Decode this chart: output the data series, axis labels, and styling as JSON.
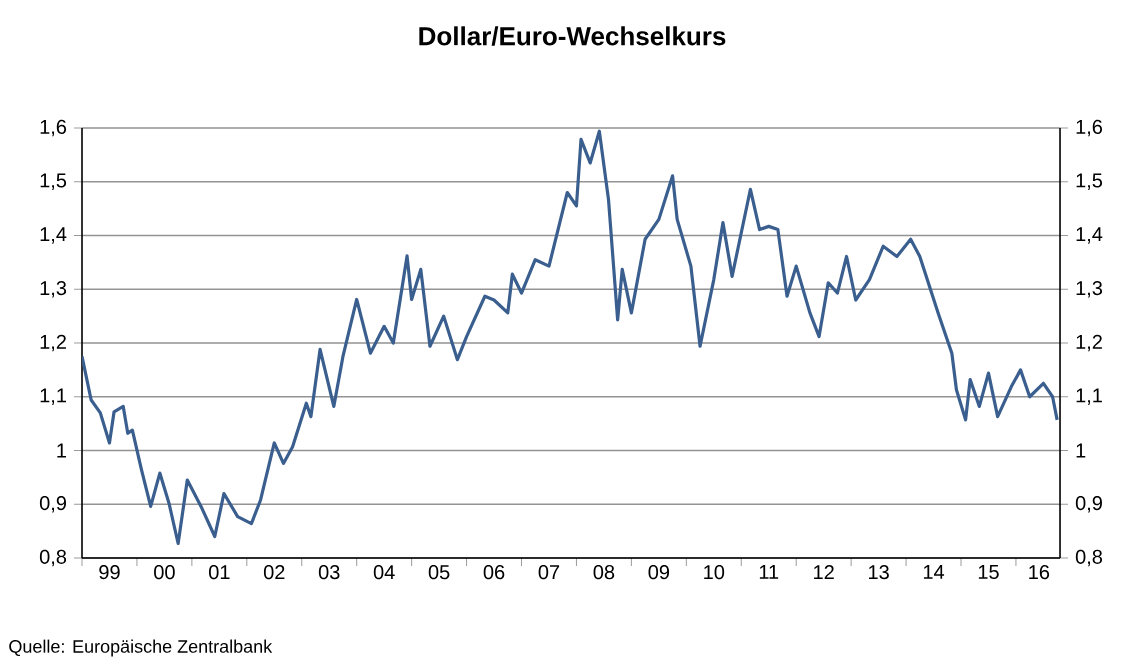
{
  "chart_data": {
    "type": "line",
    "title": "**Dollar/Euro-Wechselkurs**",
    "annotations": [
      "Quelle: Europäische Zentralbank"
    ],
    "x": [
      "1999-01",
      "1999-03",
      "1999-05",
      "1999-07",
      "1999-08",
      "1999-10",
      "1999-11",
      "1999-12",
      "2000-02",
      "2000-04",
      "2000-06",
      "2000-08",
      "2000-10",
      "2000-12",
      "2001-03",
      "2001-06",
      "2001-08",
      "2001-11",
      "2002-02",
      "2002-04",
      "2002-07",
      "2002-09",
      "2002-11",
      "2003-02",
      "2003-03",
      "2003-05",
      "2003-08",
      "2003-10",
      "2004-01",
      "2004-04",
      "2004-07",
      "2004-09",
      "2004-12",
      "2005-01",
      "2005-03",
      "2005-05",
      "2005-08",
      "2005-11",
      "2006-01",
      "2006-05",
      "2006-07",
      "2006-10",
      "2006-11",
      "2007-01",
      "2007-04",
      "2007-07",
      "2007-11",
      "2008-01",
      "2008-02",
      "2008-04",
      "2008-06",
      "2008-08",
      "2008-10",
      "2008-11",
      "2009-01",
      "2009-04",
      "2009-07",
      "2009-10",
      "2009-11",
      "2010-02",
      "2010-04",
      "2010-07",
      "2010-09",
      "2010-11",
      "2011-03",
      "2011-05",
      "2011-07",
      "2011-09",
      "2011-11",
      "2012-01",
      "2012-04",
      "2012-06",
      "2012-08",
      "2012-10",
      "2012-12",
      "2013-02",
      "2013-05",
      "2013-08",
      "2013-11",
      "2014-02",
      "2014-04",
      "2014-08",
      "2014-11",
      "2014-12",
      "2015-02",
      "2015-03",
      "2015-05",
      "2015-07",
      "2015-09",
      "2015-12",
      "2016-02",
      "2016-04",
      "2016-07",
      "2016-09",
      "2016-10"
    ],
    "series": [
      {
        "color": "#3a5f8f",
        "values": [
          1.175,
          1.094,
          1.07,
          1.014,
          1.072,
          1.082,
          1.032,
          1.038,
          0.964,
          0.896,
          0.958,
          0.902,
          0.827,
          0.945,
          0.896,
          0.84,
          0.92,
          0.877,
          0.864,
          0.908,
          1.014,
          0.976,
          1.007,
          1.088,
          1.063,
          1.188,
          1.082,
          1.175,
          1.281,
          1.181,
          1.231,
          1.2,
          1.362,
          1.281,
          1.337,
          1.194,
          1.25,
          1.169,
          1.212,
          1.287,
          1.28,
          1.256,
          1.328,
          1.293,
          1.355,
          1.343,
          1.48,
          1.455,
          1.579,
          1.535,
          1.594,
          1.467,
          1.243,
          1.337,
          1.256,
          1.393,
          1.43,
          1.511,
          1.43,
          1.343,
          1.194,
          1.318,
          1.424,
          1.324,
          1.486,
          1.411,
          1.417,
          1.411,
          1.287,
          1.343,
          1.256,
          1.212,
          1.312,
          1.293,
          1.361,
          1.28,
          1.318,
          1.38,
          1.361,
          1.393,
          1.361,
          1.256,
          1.181,
          1.113,
          1.057,
          1.132,
          1.082,
          1.144,
          1.063,
          1.119,
          1.15,
          1.1,
          1.125,
          1.1,
          1.057
        ]
      }
    ],
    "xlim": [
      "1999-01-01",
      "2016-10-20"
    ],
    "xticks": [
      {
        "value": "1999-07-01",
        "label": "99"
      },
      {
        "value": "2000-07-01",
        "label": "00"
      },
      {
        "value": "2001-07-01",
        "label": "01"
      },
      {
        "value": "2002-07-01",
        "label": "02"
      },
      {
        "value": "2003-07-01",
        "label": "03"
      },
      {
        "value": "2004-07-01",
        "label": "04"
      },
      {
        "value": "2005-07-01",
        "label": "05"
      },
      {
        "value": "2006-07-01",
        "label": "06"
      },
      {
        "value": "2007-07-01",
        "label": "07"
      },
      {
        "value": "2008-07-01",
        "label": "08"
      },
      {
        "value": "2009-07-01",
        "label": "09"
      },
      {
        "value": "2010-07-01",
        "label": "10"
      },
      {
        "value": "2011-07-01",
        "label": "11"
      },
      {
        "value": "2012-07-01",
        "label": "12"
      },
      {
        "value": "2013-07-01",
        "label": "13"
      },
      {
        "value": "2014-07-01",
        "label": "14"
      },
      {
        "value": "2015-07-01",
        "label": "15"
      },
      {
        "value": "2016-06-01",
        "label": "16"
      },
      {
        "value": "1999-01-01",
        "label": null
      },
      {
        "value": "2000-01-01",
        "label": null
      },
      {
        "value": "2001-01-01",
        "label": null
      },
      {
        "value": "2002-01-01",
        "label": null
      },
      {
        "value": "2003-01-01",
        "label": null
      },
      {
        "value": "2004-01-01",
        "label": null
      },
      {
        "value": "2005-01-01",
        "label": null
      },
      {
        "value": "2006-01-01",
        "label": null
      },
      {
        "value": "2007-01-01",
        "label": null
      },
      {
        "value": "2008-01-01",
        "label": null
      },
      {
        "value": "2009-01-01",
        "label": null
      },
      {
        "value": "2010-01-01",
        "label": null
      },
      {
        "value": "2011-01-01",
        "label": null
      },
      {
        "value": "2012-01-01",
        "label": null
      },
      {
        "value": "2013-01-01",
        "label": null
      },
      {
        "value": "2014-01-01",
        "label": null
      },
      {
        "value": "2015-01-01",
        "label": null
      },
      {
        "value": "2016-01-01",
        "label": null
      }
    ],
    "ylim": [
      0.8,
      1.6
    ],
    "yticks": [
      {
        "value": 0.8,
        "label": "0,8"
      },
      {
        "value": 0.9,
        "label": "0,9"
      },
      1,
      {
        "value": 1.1,
        "label": "1,1"
      },
      {
        "value": 1.2,
        "label": "1,2"
      },
      {
        "value": 1.3,
        "label": "1,3"
      },
      {
        "value": 1.4,
        "label": "1,4"
      },
      {
        "value": 1.5,
        "label": "1,5"
      },
      {
        "value": 1.6,
        "label": "1,6"
      }
    ],
    "y2lim": [
      0.8,
      1.6
    ],
    "y2ticks": [
      {
        "value": 0.8,
        "label": "0,8"
      },
      {
        "value": 0.9,
        "label": "0,9"
      },
      1,
      {
        "value": 1.1,
        "label": "1,1"
      },
      {
        "value": 1.2,
        "label": "1,2"
      },
      {
        "value": 1.3,
        "label": "1,3"
      },
      {
        "value": 1.4,
        "label": "1,4"
      },
      {
        "value": 1.5,
        "label": "1,5"
      },
      {
        "value": 1.6,
        "label": "1,6"
      }
    ],
    "grid": "y"
  }
}
